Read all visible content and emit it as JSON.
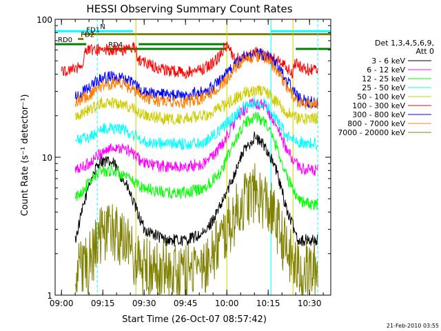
{
  "chart_data": {
    "type": "line",
    "title": "HESSI Observing Summary Count Rates",
    "xlabel": "Start Time (26-Oct-07 08:57:42)",
    "ylabel": "Count Rate (s⁻¹ detector⁻¹)",
    "yscale": "log",
    "ylim": [
      1,
      100
    ],
    "y_tick_labels": [
      "1",
      "10",
      "100"
    ],
    "x_tick_labels": [
      "09:00",
      "09:15",
      "09:30",
      "09:45",
      "10:00",
      "10:15",
      "10:30"
    ],
    "x_ticks": [
      "09:00",
      "09:15",
      "09:30",
      "09:45",
      "10:00",
      "10:15",
      "10:30"
    ],
    "xlim": [
      "08:57:42",
      "10:37:42"
    ],
    "legend": {
      "header_line1": "Det 1,3,4,5,6,9,",
      "header_line2": "Att 0",
      "placement": "right"
    },
    "series": [
      {
        "name": "3 - 6 keV",
        "color": "#000000",
        "x": [
          "09:05",
          "09:10",
          "09:14",
          "09:19",
          "09:24",
          "09:30",
          "09:38",
          "09:45",
          "09:52",
          "09:58",
          "10:02",
          "10:06",
          "10:10",
          "10:14",
          "10:18",
          "10:22",
          "10:26",
          "10:30",
          "10:33"
        ],
        "y": [
          2.5,
          6.5,
          9.5,
          9,
          6,
          3,
          2.5,
          2.5,
          2.8,
          4.5,
          7,
          11,
          14,
          12,
          8,
          4,
          2.5,
          2.5,
          2.5
        ]
      },
      {
        "name": "6 - 12 keV",
        "color": "#ff00ff",
        "x": [
          "09:05",
          "09:10",
          "09:15",
          "09:20",
          "09:25",
          "09:30",
          "09:38",
          "09:45",
          "09:52",
          "09:58",
          "10:02",
          "10:06",
          "10:10",
          "10:14",
          "10:18",
          "10:22",
          "10:26",
          "10:30",
          "10:33"
        ],
        "y": [
          8,
          9,
          11,
          12,
          11,
          9,
          8.5,
          8.5,
          9,
          12,
          17,
          22,
          25,
          23,
          17,
          11,
          8.5,
          8,
          8
        ]
      },
      {
        "name": "12 - 25 keV",
        "color": "#00ff00",
        "x": [
          "09:05",
          "09:10",
          "09:14",
          "09:19",
          "09:24",
          "09:30",
          "09:38",
          "09:45",
          "09:52",
          "09:58",
          "10:02",
          "10:06",
          "10:10",
          "10:14",
          "10:18",
          "10:22",
          "10:26",
          "10:30",
          "10:33"
        ],
        "y": [
          5,
          6.5,
          8,
          8,
          7,
          6,
          5.5,
          5.5,
          6,
          8,
          12,
          17,
          20,
          18,
          12,
          7,
          5,
          4.5,
          4.5
        ]
      },
      {
        "name": "25 - 50 keV",
        "color": "#00ffff",
        "x": [
          "09:05",
          "09:10",
          "09:15",
          "09:20",
          "09:25",
          "09:30",
          "09:38",
          "09:45",
          "09:52",
          "09:58",
          "10:02",
          "10:06",
          "10:10",
          "10:14",
          "10:18",
          "10:22",
          "10:26",
          "10:30",
          "10:33"
        ],
        "y": [
          13,
          14,
          16,
          16.5,
          15,
          13,
          12.5,
          12.5,
          13,
          16,
          19,
          23,
          25,
          24,
          19,
          14,
          13,
          12.5,
          12.5
        ]
      },
      {
        "name": "50 - 100 keV",
        "color": "#cccc00",
        "x": [
          "09:05",
          "09:10",
          "09:15",
          "09:20",
          "09:25",
          "09:30",
          "09:38",
          "09:45",
          "09:52",
          "09:58",
          "10:02",
          "10:06",
          "10:10",
          "10:14",
          "10:18",
          "10:22",
          "10:26",
          "10:30",
          "10:33"
        ],
        "y": [
          20,
          22,
          25,
          25,
          23,
          20,
          19,
          19,
          20,
          23,
          26,
          29,
          31,
          30,
          25,
          21,
          19,
          19,
          19
        ]
      },
      {
        "name": "100 - 300 keV",
        "color": "#ff0000",
        "x": [
          "09:00",
          "09:05",
          "09:08",
          "09:08.5",
          "09:15",
          "09:20",
          "09:27",
          "09:27.5",
          "09:35",
          "09:45",
          "09:52",
          "09:57",
          "09:59",
          "10:00",
          "10:03",
          "10:08",
          "10:11",
          "10:14",
          "10:18",
          "10:22",
          "10:24",
          "10:24.5",
          "10:30",
          "10:33"
        ],
        "y": [
          42,
          44,
          48,
          60,
          60,
          60,
          62,
          52,
          44,
          41,
          44,
          52,
          62,
          64,
          52,
          55,
          57,
          55,
          50,
          44,
          40,
          48,
          43,
          42
        ]
      },
      {
        "name": "300 - 800 keV",
        "color": "#0000ff",
        "x": [
          "09:05",
          "09:10",
          "09:15",
          "09:20",
          "09:25",
          "09:30",
          "09:38",
          "09:45",
          "09:52",
          "09:58",
          "10:02",
          "10:06",
          "10:10",
          "10:14",
          "10:18",
          "10:22",
          "10:26",
          "10:30",
          "10:33"
        ],
        "y": [
          27,
          32,
          38,
          38,
          35,
          30,
          28,
          28,
          30,
          36,
          45,
          52,
          57,
          55,
          47,
          35,
          27,
          25,
          25
        ]
      },
      {
        "name": "800 - 7000 keV",
        "color": "#ff8000",
        "x": [
          "09:05",
          "09:10",
          "09:15",
          "09:20",
          "09:25",
          "09:30",
          "09:38",
          "09:45",
          "09:52",
          "09:58",
          "10:02",
          "10:06",
          "10:10",
          "10:14",
          "10:18",
          "10:22",
          "10:26",
          "10:30",
          "10:33"
        ],
        "y": [
          25,
          28,
          33,
          35,
          32,
          27,
          25,
          25,
          27,
          33,
          42,
          50,
          55,
          52,
          43,
          32,
          25,
          24,
          24
        ]
      },
      {
        "name": "7000 - 20000 keV",
        "color": "#808000",
        "x": [
          "09:05",
          "09:10",
          "09:14",
          "09:19",
          "09:24",
          "09:30",
          "09:38",
          "09:45",
          "09:52",
          "09:58",
          "10:02",
          "10:06",
          "10:10",
          "10:14",
          "10:18",
          "10:22",
          "10:26",
          "10:30",
          "10:33"
        ],
        "y": [
          1.5,
          1.7,
          2.6,
          2.8,
          2.2,
          1.6,
          1.5,
          1.5,
          1.7,
          2.5,
          3.5,
          4.8,
          5.5,
          4.8,
          3.4,
          2,
          1.5,
          1.5,
          1.5
        ]
      }
    ],
    "flag_bars": [
      {
        "label": "N",
        "color": "#00ffff",
        "y": 82,
        "ranges": [
          [
            "08:57:42",
            "09:26"
          ],
          [
            "10:16",
            "10:37:42"
          ]
        ]
      },
      {
        "label": "FD1",
        "color": "#808000",
        "y": 78,
        "ranges": [
          [
            "09:08",
            "10:37:42"
          ]
        ]
      },
      {
        "label": "FD2",
        "color": "#808000",
        "y": 72,
        "ranges": [
          [
            "09:06",
            "09:08"
          ]
        ]
      },
      {
        "label": "RD0",
        "color": "#008000",
        "y": 66,
        "ranges": [
          [
            "08:57:42",
            "09:09"
          ],
          [
            "09:28",
            "10:00"
          ]
        ]
      },
      {
        "label": "RD4",
        "color": "#008000",
        "y": 61,
        "ranges": [
          [
            "09:16",
            "10:00"
          ],
          [
            "10:25",
            "10:37:42"
          ]
        ]
      }
    ],
    "vertical_markers": [
      {
        "x": "08:57:42",
        "color": "#00ffff",
        "style": "solid"
      },
      {
        "x": "10:16",
        "color": "#00ffff",
        "style": "solid"
      },
      {
        "x": "09:13",
        "color": "#00ffff",
        "style": "dashed"
      },
      {
        "x": "10:33",
        "color": "#00ffff",
        "style": "dashed"
      },
      {
        "x": "09:27",
        "color": "#cccc00",
        "style": "solid"
      },
      {
        "x": "10:00",
        "color": "#cccc00",
        "style": "solid"
      },
      {
        "x": "10:24",
        "color": "#cccc00",
        "style": "solid"
      }
    ],
    "grid": false
  },
  "footer": {
    "timestamp": "21-Feb-2010 03:55"
  }
}
